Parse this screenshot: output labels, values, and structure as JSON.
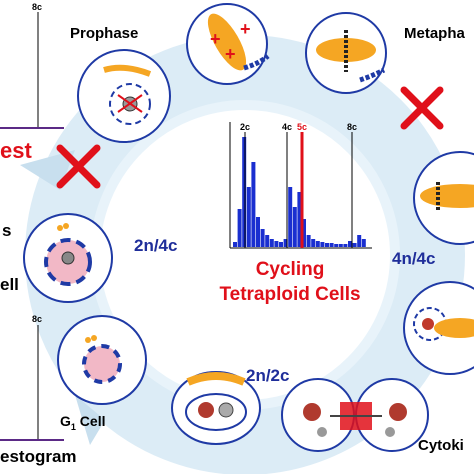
{
  "labels": {
    "prophase": "Prophase",
    "metaphase": "Metapha",
    "arrest": "est",
    "left_s": "s",
    "left_cell": "ell",
    "histogram_cut": "estogram",
    "g1_cell": "G",
    "g1_sub": "1",
    "g1_cell_rest": " Cell",
    "cytokinesis": "Cytoki",
    "ploidy_2n4c": "2n/4c",
    "ploidy_4n4c": "4n/4c",
    "ploidy_2n2c": "2n/2c",
    "title_line1": "Cycling",
    "title_line2": "Tetraploid Cells"
  },
  "histogram": {
    "ticks": [
      "2c",
      "4c",
      "5c",
      "8c"
    ],
    "left_top_tick": "8c",
    "left_bottom_tick": "8c"
  },
  "chart_data": {
    "type": "bar",
    "x_ticks": [
      "2c",
      "4c",
      "5c",
      "8c"
    ],
    "values": [
      5,
      38,
      110,
      60,
      85,
      30,
      18,
      12,
      8,
      6,
      5,
      8,
      60,
      40,
      55,
      28,
      12,
      8,
      6,
      5,
      4,
      4,
      3,
      3,
      3,
      6,
      4,
      12,
      8
    ]
  },
  "colors": {
    "blue_text": "#1f2e9a",
    "red_text": "#e0101a",
    "histogram_bar": "#1a2fd0",
    "marker_red": "#e0101a",
    "arrow_fill": "#d9ecf7",
    "cell_fill": "#ffffff",
    "nucleus_pink": "#f2b8c6",
    "chromosome_orange": "#f5a623",
    "membrane_blue": "#1f3aa5"
  }
}
